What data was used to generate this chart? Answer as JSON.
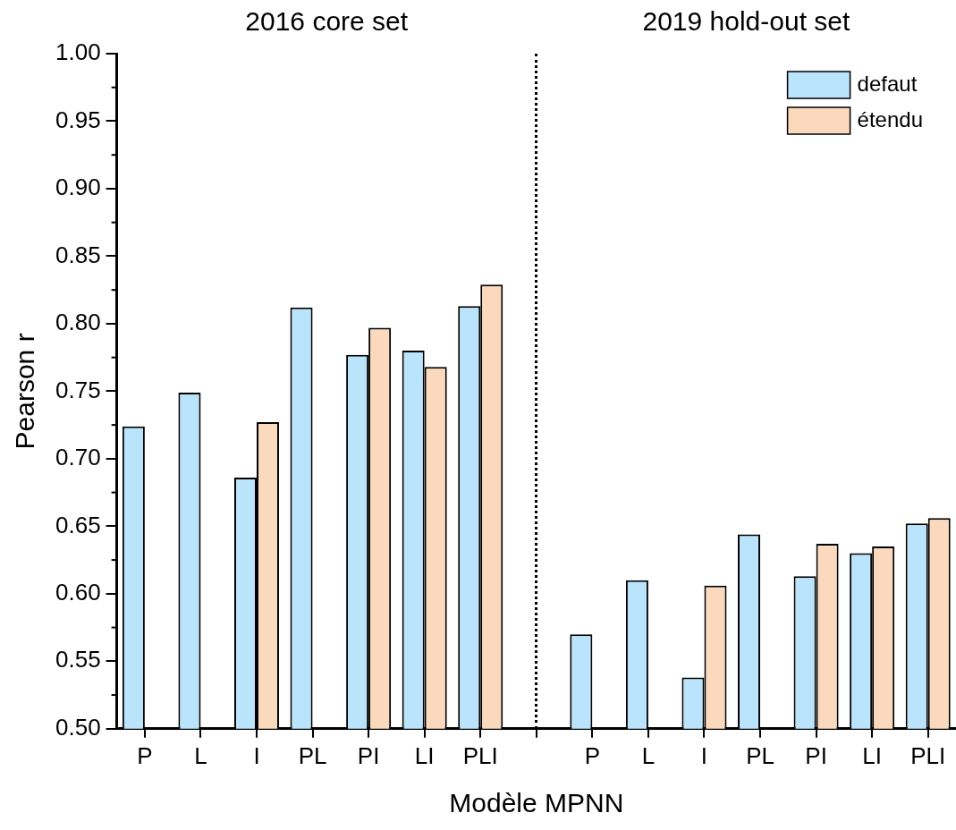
{
  "chart_data": {
    "type": "bar",
    "xlabel": "Modèle MPNN",
    "ylabel": "Pearson r",
    "annotations": [
      "2016 core set",
      "2019 hold-out set"
    ],
    "categories": [
      "P",
      "L",
      "I",
      "PL",
      "PI",
      "LI",
      "PLI",
      null,
      "P",
      "L",
      "I",
      "PL",
      "PI",
      "LI",
      "PLI"
    ],
    "series": [
      {
        "name": "defaut",
        "color": "#b9e4fb",
        "values": [
          0.724,
          0.749,
          0.686,
          0.812,
          0.777,
          0.78,
          0.813,
          null,
          0.57,
          0.61,
          0.538,
          0.644,
          0.613,
          0.63,
          0.652
        ]
      },
      {
        "name": "étendu",
        "color": "#fad9bc",
        "values": [
          null,
          null,
          0.727,
          null,
          0.797,
          0.768,
          0.829,
          null,
          null,
          null,
          0.606,
          null,
          0.637,
          0.635,
          0.656
        ]
      }
    ],
    "ylim": [
      0.5,
      1.0
    ],
    "yticks": [
      {
        "value": 0.5,
        "label": "0.50"
      },
      {
        "value": 0.525,
        "label": null
      },
      {
        "value": 0.55,
        "label": "0.55"
      },
      {
        "value": 0.575,
        "label": null
      },
      {
        "value": 0.6,
        "label": "0.60"
      },
      {
        "value": 0.625,
        "label": null
      },
      {
        "value": 0.65,
        "label": "0.65"
      },
      {
        "value": 0.675,
        "label": null
      },
      {
        "value": 0.7,
        "label": "0.70"
      },
      {
        "value": 0.725,
        "label": null
      },
      {
        "value": 0.75,
        "label": "0.75"
      },
      {
        "value": 0.775,
        "label": null
      },
      {
        "value": 0.8,
        "label": "0.80"
      },
      {
        "value": 0.825,
        "label": null
      },
      {
        "value": 0.85,
        "label": "0.85"
      },
      {
        "value": 0.875,
        "label": null
      },
      {
        "value": 0.9,
        "label": "0.90"
      },
      {
        "value": 0.925,
        "label": null
      },
      {
        "value": 0.95,
        "label": "0.95"
      },
      {
        "value": 0.975,
        "label": null
      },
      {
        "value": 1.0,
        "label": "1.00"
      }
    ],
    "legend": "top right"
  }
}
